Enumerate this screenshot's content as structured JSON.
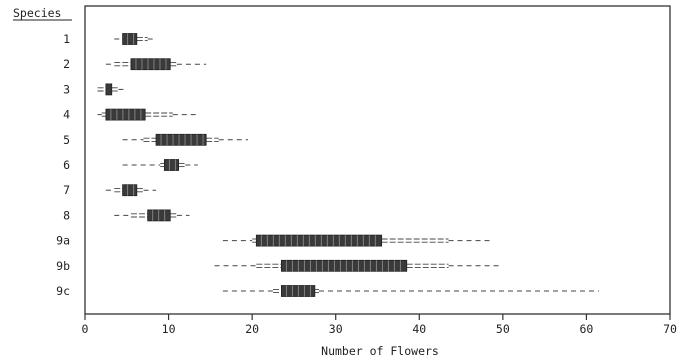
{
  "chart_data": {
    "type": "box",
    "title": "",
    "ylabel": "Species",
    "xlabel": "Number of Flowers",
    "xlim": [
      0,
      70
    ],
    "xticks": [
      0,
      10,
      20,
      30,
      40,
      50,
      60,
      70
    ],
    "grid": false,
    "categories": [
      "1",
      "2",
      "3",
      "4",
      "5",
      "6",
      "7",
      "8",
      "9a",
      "9b",
      "9c"
    ],
    "boxes": [
      {
        "label": "1",
        "whisker_low": 3.5,
        "dense_low": 4.5,
        "q1": 4.5,
        "q3": 6.2,
        "dense_high": 7.5,
        "whisker_high": 8.5
      },
      {
        "label": "2",
        "whisker_low": 2.5,
        "dense_low": 3.5,
        "q1": 5.5,
        "q3": 10.2,
        "dense_high": 11.0,
        "whisker_high": 14.5
      },
      {
        "label": "3",
        "whisker_low": 1.5,
        "dense_low": 1.5,
        "q1": 2.5,
        "q3": 3.2,
        "dense_high": 4.0,
        "whisker_high": 5.0
      },
      {
        "label": "4",
        "whisker_low": 1.5,
        "dense_low": 2.0,
        "q1": 2.5,
        "q3": 7.2,
        "dense_high": 10.5,
        "whisker_high": 13.5
      },
      {
        "label": "5",
        "whisker_low": 4.5,
        "dense_low": 7.0,
        "q1": 8.5,
        "q3": 14.5,
        "dense_high": 16.0,
        "whisker_high": 19.5
      },
      {
        "label": "6",
        "whisker_low": 4.5,
        "dense_low": 9.0,
        "q1": 9.5,
        "q3": 11.2,
        "dense_high": 12.0,
        "whisker_high": 13.5
      },
      {
        "label": "7",
        "whisker_low": 2.5,
        "dense_low": 3.5,
        "q1": 4.5,
        "q3": 6.2,
        "dense_high": 7.0,
        "whisker_high": 8.5
      },
      {
        "label": "8",
        "whisker_low": 3.5,
        "dense_low": 5.5,
        "q1": 7.5,
        "q3": 10.2,
        "dense_high": 11.0,
        "whisker_high": 12.5
      },
      {
        "label": "9a",
        "whisker_low": 16.5,
        "dense_low": 20.0,
        "q1": 20.5,
        "q3": 35.5,
        "dense_high": 43.5,
        "whisker_high": 48.5
      },
      {
        "label": "9b",
        "whisker_low": 15.5,
        "dense_low": 20.5,
        "q1": 23.5,
        "q3": 38.5,
        "dense_high": 43.5,
        "whisker_high": 49.5
      },
      {
        "label": "9c",
        "whisker_low": 16.5,
        "dense_low": 22.5,
        "q1": 23.5,
        "q3": 27.5,
        "dense_high": 28.0,
        "whisker_high": 61.5
      }
    ]
  },
  "colors": {
    "box_fill": "#3a3a3a",
    "box_stripe": "#8a8a8a",
    "axis": "#333333",
    "whisker": "#444444",
    "text": "#222222"
  }
}
